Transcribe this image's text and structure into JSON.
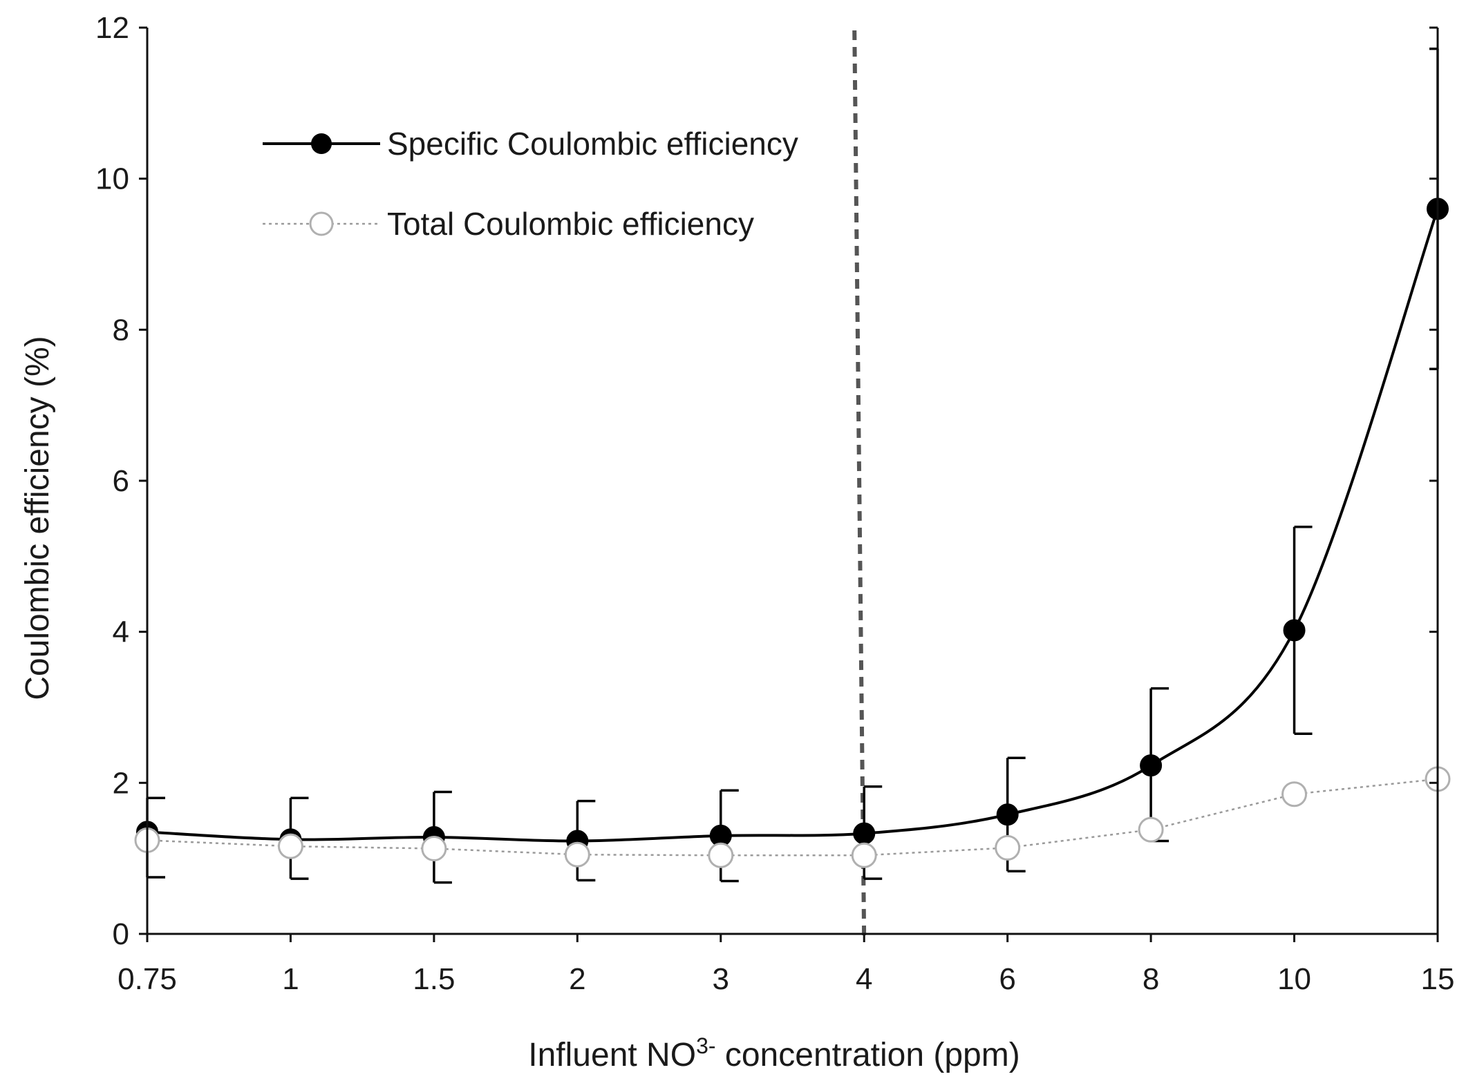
{
  "chart_data": {
    "type": "line",
    "title": "",
    "xlabel": {
      "prefix": "Influent NO",
      "superscript": "3-",
      "suffix": " concentration (ppm)"
    },
    "ylabel": "Coulombic efficiency (%)",
    "categories": [
      "0.75",
      "1",
      "1.5",
      "2",
      "3",
      "4",
      "6",
      "8",
      "10",
      "15"
    ],
    "ylim": [
      0,
      12
    ],
    "yticks": [
      "0",
      "2",
      "4",
      "6",
      "8",
      "10",
      "12"
    ],
    "grid": false,
    "legend_position": "top-left",
    "reference_line": {
      "category": "4",
      "style": "dashed"
    },
    "series": [
      {
        "name": "Specific Coulombic efficiency",
        "marker": "filled-circle",
        "line": "solid-smooth",
        "color": "#000000",
        "values": [
          1.35,
          1.25,
          1.28,
          1.23,
          1.3,
          1.33,
          1.58,
          2.23,
          4.02,
          9.6
        ],
        "error_upper": [
          0.45,
          0.55,
          0.6,
          0.53,
          0.6,
          0.62,
          0.75,
          1.02,
          1.37,
          2.12
        ],
        "error_lower": [
          0.6,
          0.52,
          0.6,
          0.52,
          0.6,
          0.6,
          0.75,
          1.0,
          1.37,
          2.12
        ]
      },
      {
        "name": "Total Coulombic efficiency",
        "marker": "open-circle",
        "line": "dotted",
        "color": "#9a9a9a",
        "values": [
          1.24,
          1.16,
          1.13,
          1.05,
          1.04,
          1.04,
          1.14,
          1.38,
          1.85,
          2.05
        ]
      }
    ]
  }
}
